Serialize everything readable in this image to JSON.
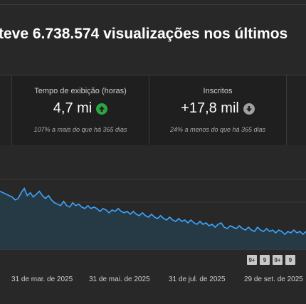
{
  "headline": "teve 6.738.574 visualizações nos últimos",
  "cards": [
    {
      "title": "Tempo de exibição (horas)",
      "value": "4,7 mi",
      "trend": "up",
      "trend_icon": "arrow-up-icon",
      "note": "107% a mais do que há 365 dias"
    },
    {
      "title": "Inscritos",
      "value": "+17,8 mil",
      "trend": "down",
      "trend_icon": "arrow-down-icon",
      "note": "24% a menos do que há 365 dias"
    }
  ],
  "colors": {
    "line": "#3ea6ff",
    "fill": "#263a46",
    "up": "#2ba640",
    "down": "#a0a0a0",
    "gridline": "#3a3a3a"
  },
  "chart_data": {
    "type": "area",
    "x_tick_labels": [
      "31 de mar. de 2025",
      "31 de mai. de 2025",
      "31 de jul. de 2025",
      "29 de set. de 2025"
    ],
    "values": [
      58,
      57,
      56,
      55,
      54,
      52,
      53,
      57,
      60,
      55,
      57,
      54,
      56,
      58,
      55,
      53,
      55,
      52,
      50,
      49,
      48,
      51,
      48,
      47,
      50,
      48,
      49,
      47,
      46,
      48,
      46,
      47,
      46,
      44,
      46,
      45,
      43,
      45,
      44,
      46,
      44,
      43,
      44,
      42,
      44,
      42,
      41,
      43,
      41,
      40,
      42,
      40,
      39,
      41,
      39,
      38,
      40,
      38,
      37,
      39,
      37,
      38,
      36,
      38,
      36,
      35,
      37,
      35,
      36,
      34,
      35,
      33,
      35,
      36,
      33,
      32,
      34,
      33,
      32,
      34,
      32,
      31,
      33,
      31,
      30,
      33,
      31,
      30,
      32,
      30,
      31,
      29,
      31,
      30,
      28,
      30,
      29,
      31,
      29,
      30,
      28,
      30
    ],
    "ylim": [
      0,
      100
    ],
    "grid": true
  },
  "badges": [
    "9+",
    "9",
    "9+",
    "9"
  ]
}
